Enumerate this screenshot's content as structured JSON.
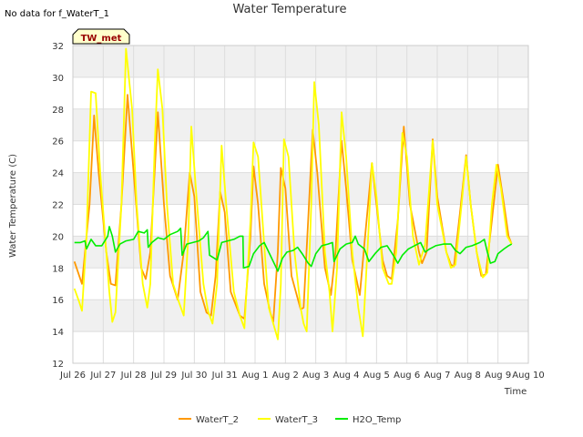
{
  "no_data_text": "No data for f_WaterT_1",
  "station_tag": "TW_met",
  "colors": {
    "WaterT_2": "#ff9900",
    "WaterT_3": "#ffff00",
    "H2O_Temp": "#00ee00",
    "band": "#f0f0f0",
    "tag_bg": "#ffffcc",
    "tag_text": "#990000"
  },
  "chart_data": {
    "type": "line",
    "title": "Water Temperature",
    "xlabel": "Time",
    "ylabel": "Water Temperature (C)",
    "ylim": [
      12,
      32
    ],
    "xlim": [
      0,
      15
    ],
    "x_unit": "days from Jul 26",
    "yticks": [
      12,
      14,
      16,
      18,
      20,
      22,
      24,
      26,
      28,
      30,
      32
    ],
    "xticks": [
      {
        "v": 0,
        "label": "Jul 26"
      },
      {
        "v": 1,
        "label": "Jul 27"
      },
      {
        "v": 2,
        "label": "Jul 28"
      },
      {
        "v": 3,
        "label": "Jul 29"
      },
      {
        "v": 4,
        "label": "Jul 30"
      },
      {
        "v": 5,
        "label": "Jul 31"
      },
      {
        "v": 6,
        "label": "Aug 1"
      },
      {
        "v": 7,
        "label": "Aug 2"
      },
      {
        "v": 8,
        "label": "Aug 3"
      },
      {
        "v": 9,
        "label": "Aug 4"
      },
      {
        "v": 10,
        "label": "Aug 5"
      },
      {
        "v": 11,
        "label": "Aug 6"
      },
      {
        "v": 12,
        "label": "Aug 7"
      },
      {
        "v": 13,
        "label": "Aug 8"
      },
      {
        "v": 14,
        "label": "Aug 9"
      },
      {
        "v": 15,
        "label": "Aug 10"
      }
    ],
    "grid": true,
    "legend_position": "bottom",
    "series": [
      {
        "name": "WaterT_2",
        "points": [
          [
            0.05,
            18.4
          ],
          [
            0.3,
            17.0
          ],
          [
            0.55,
            22.0
          ],
          [
            0.7,
            27.6
          ],
          [
            0.85,
            24.0
          ],
          [
            1.1,
            19.0
          ],
          [
            1.25,
            17.0
          ],
          [
            1.4,
            16.9
          ],
          [
            1.6,
            22.0
          ],
          [
            1.8,
            28.9
          ],
          [
            2.0,
            24.0
          ],
          [
            2.25,
            18.0
          ],
          [
            2.4,
            17.3
          ],
          [
            2.55,
            19.0
          ],
          [
            2.8,
            27.8
          ],
          [
            3.0,
            22.0
          ],
          [
            3.2,
            17.5
          ],
          [
            3.45,
            16.0
          ],
          [
            3.65,
            19.0
          ],
          [
            3.85,
            24.0
          ],
          [
            4.0,
            22.5
          ],
          [
            4.2,
            16.5
          ],
          [
            4.4,
            15.2
          ],
          [
            4.55,
            15.0
          ],
          [
            4.7,
            17.5
          ],
          [
            4.85,
            22.8
          ],
          [
            5.0,
            21.5
          ],
          [
            5.2,
            16.5
          ],
          [
            5.5,
            15.0
          ],
          [
            5.65,
            14.8
          ],
          [
            5.85,
            20.0
          ],
          [
            5.95,
            24.4
          ],
          [
            6.1,
            22.0
          ],
          [
            6.3,
            17.0
          ],
          [
            6.5,
            15.2
          ],
          [
            6.6,
            14.6
          ],
          [
            6.75,
            19.0
          ],
          [
            6.85,
            24.3
          ],
          [
            7.0,
            23.0
          ],
          [
            7.2,
            17.5
          ],
          [
            7.5,
            15.4
          ],
          [
            7.6,
            15.5
          ],
          [
            7.75,
            21.0
          ],
          [
            7.9,
            26.7
          ],
          [
            8.05,
            24.0
          ],
          [
            8.3,
            18.0
          ],
          [
            8.5,
            16.3
          ],
          [
            8.65,
            19.0
          ],
          [
            8.85,
            26.0
          ],
          [
            9.0,
            23.0
          ],
          [
            9.2,
            18.5
          ],
          [
            9.45,
            16.3
          ],
          [
            9.6,
            19.5
          ],
          [
            9.85,
            24.6
          ],
          [
            10.0,
            22.0
          ],
          [
            10.2,
            18.5
          ],
          [
            10.35,
            17.5
          ],
          [
            10.5,
            17.3
          ],
          [
            10.7,
            21.0
          ],
          [
            10.9,
            26.9
          ],
          [
            11.1,
            22.0
          ],
          [
            11.4,
            19.0
          ],
          [
            11.5,
            18.3
          ],
          [
            11.65,
            19.0
          ],
          [
            11.85,
            26.1
          ],
          [
            12.0,
            22.5
          ],
          [
            12.3,
            19.0
          ],
          [
            12.45,
            18.2
          ],
          [
            12.55,
            18.1
          ],
          [
            12.75,
            21.5
          ],
          [
            12.95,
            25.1
          ],
          [
            13.1,
            22.0
          ],
          [
            13.3,
            19.0
          ],
          [
            13.45,
            17.5
          ],
          [
            13.6,
            17.6
          ],
          [
            13.8,
            21.0
          ],
          [
            14.0,
            24.5
          ],
          [
            14.2,
            22.0
          ],
          [
            14.35,
            20.0
          ],
          [
            14.45,
            19.5
          ]
        ]
      },
      {
        "name": "WaterT_3",
        "points": [
          [
            0.05,
            16.7
          ],
          [
            0.2,
            15.9
          ],
          [
            0.3,
            15.3
          ],
          [
            0.45,
            20.0
          ],
          [
            0.6,
            29.1
          ],
          [
            0.75,
            29.0
          ],
          [
            0.9,
            24.0
          ],
          [
            1.1,
            19.0
          ],
          [
            1.2,
            16.5
          ],
          [
            1.3,
            14.6
          ],
          [
            1.4,
            15.2
          ],
          [
            1.6,
            22.0
          ],
          [
            1.75,
            31.8
          ],
          [
            1.95,
            28.0
          ],
          [
            2.1,
            22.0
          ],
          [
            2.3,
            17.0
          ],
          [
            2.45,
            15.5
          ],
          [
            2.55,
            17.0
          ],
          [
            2.7,
            26.0
          ],
          [
            2.8,
            30.5
          ],
          [
            2.95,
            28.0
          ],
          [
            3.1,
            22.0
          ],
          [
            3.3,
            17.0
          ],
          [
            3.5,
            15.8
          ],
          [
            3.65,
            15.0
          ],
          [
            3.8,
            20.0
          ],
          [
            3.9,
            26.9
          ],
          [
            4.05,
            23.0
          ],
          [
            4.3,
            17.0
          ],
          [
            4.45,
            15.3
          ],
          [
            4.6,
            14.5
          ],
          [
            4.75,
            17.0
          ],
          [
            4.9,
            25.7
          ],
          [
            5.05,
            22.0
          ],
          [
            5.3,
            16.5
          ],
          [
            5.5,
            15.0
          ],
          [
            5.65,
            14.2
          ],
          [
            5.85,
            21.0
          ],
          [
            5.95,
            25.9
          ],
          [
            6.1,
            25.0
          ],
          [
            6.3,
            19.5
          ],
          [
            6.45,
            15.5
          ],
          [
            6.6,
            14.5
          ],
          [
            6.75,
            13.5
          ],
          [
            6.85,
            17.0
          ],
          [
            6.95,
            26.1
          ],
          [
            7.1,
            25.0
          ],
          [
            7.3,
            19.0
          ],
          [
            7.5,
            15.5
          ],
          [
            7.6,
            14.5
          ],
          [
            7.7,
            14.0
          ],
          [
            7.85,
            22.0
          ],
          [
            7.95,
            29.7
          ],
          [
            8.1,
            27.0
          ],
          [
            8.3,
            19.0
          ],
          [
            8.45,
            16.5
          ],
          [
            8.55,
            14.0
          ],
          [
            8.7,
            18.0
          ],
          [
            8.85,
            27.8
          ],
          [
            9.0,
            25.0
          ],
          [
            9.2,
            19.0
          ],
          [
            9.4,
            15.5
          ],
          [
            9.55,
            13.7
          ],
          [
            9.7,
            19.0
          ],
          [
            9.85,
            24.6
          ],
          [
            10.0,
            22.5
          ],
          [
            10.2,
            18.0
          ],
          [
            10.4,
            17.0
          ],
          [
            10.5,
            17.0
          ],
          [
            10.65,
            19.0
          ],
          [
            10.85,
            26.5
          ],
          [
            11.0,
            25.0
          ],
          [
            11.2,
            20.0
          ],
          [
            11.4,
            18.2
          ],
          [
            11.6,
            19.5
          ],
          [
            11.85,
            26.0
          ],
          [
            12.0,
            22.0
          ],
          [
            12.3,
            19.0
          ],
          [
            12.45,
            18.0
          ],
          [
            12.6,
            18.2
          ],
          [
            12.8,
            22.0
          ],
          [
            12.95,
            25.0
          ],
          [
            13.1,
            22.0
          ],
          [
            13.3,
            19.0
          ],
          [
            13.5,
            17.4
          ],
          [
            13.65,
            17.7
          ],
          [
            13.8,
            22.0
          ],
          [
            13.95,
            24.5
          ],
          [
            14.1,
            23.0
          ],
          [
            14.3,
            20.0
          ],
          [
            14.45,
            19.5
          ]
        ]
      },
      {
        "name": "H2O_Temp",
        "points": [
          [
            0.05,
            19.6
          ],
          [
            0.25,
            19.6
          ],
          [
            0.4,
            19.7
          ],
          [
            0.45,
            19.2
          ],
          [
            0.6,
            19.8
          ],
          [
            0.75,
            19.4
          ],
          [
            0.95,
            19.4
          ],
          [
            1.15,
            20.0
          ],
          [
            1.2,
            20.6
          ],
          [
            1.3,
            20.0
          ],
          [
            1.4,
            19.0
          ],
          [
            1.55,
            19.5
          ],
          [
            1.75,
            19.7
          ],
          [
            2.0,
            19.8
          ],
          [
            2.15,
            20.3
          ],
          [
            2.35,
            20.2
          ],
          [
            2.45,
            20.4
          ],
          [
            2.48,
            19.3
          ],
          [
            2.6,
            19.6
          ],
          [
            2.8,
            19.9
          ],
          [
            3.0,
            19.8
          ],
          [
            3.2,
            20.1
          ],
          [
            3.45,
            20.3
          ],
          [
            3.55,
            20.5
          ],
          [
            3.6,
            18.8
          ],
          [
            3.75,
            19.5
          ],
          [
            3.95,
            19.6
          ],
          [
            4.15,
            19.7
          ],
          [
            4.3,
            19.9
          ],
          [
            4.45,
            20.3
          ],
          [
            4.5,
            18.8
          ],
          [
            4.75,
            18.5
          ],
          [
            4.9,
            19.6
          ],
          [
            5.1,
            19.7
          ],
          [
            5.3,
            19.8
          ],
          [
            5.5,
            20.0
          ],
          [
            5.6,
            20.0
          ],
          [
            5.62,
            18.0
          ],
          [
            5.8,
            18.1
          ],
          [
            5.95,
            18.9
          ],
          [
            6.15,
            19.4
          ],
          [
            6.3,
            19.6
          ],
          [
            6.45,
            19.0
          ],
          [
            6.65,
            18.2
          ],
          [
            6.75,
            17.8
          ],
          [
            6.9,
            18.6
          ],
          [
            7.05,
            19.0
          ],
          [
            7.25,
            19.1
          ],
          [
            7.4,
            19.3
          ],
          [
            7.55,
            18.9
          ],
          [
            7.75,
            18.3
          ],
          [
            7.85,
            18.1
          ],
          [
            8.0,
            18.9
          ],
          [
            8.2,
            19.4
          ],
          [
            8.4,
            19.5
          ],
          [
            8.55,
            19.6
          ],
          [
            8.6,
            18.4
          ],
          [
            8.8,
            19.2
          ],
          [
            9.0,
            19.5
          ],
          [
            9.2,
            19.6
          ],
          [
            9.3,
            20.0
          ],
          [
            9.4,
            19.5
          ],
          [
            9.6,
            19.2
          ],
          [
            9.75,
            18.4
          ],
          [
            9.95,
            18.9
          ],
          [
            10.15,
            19.3
          ],
          [
            10.35,
            19.4
          ],
          [
            10.55,
            18.8
          ],
          [
            10.7,
            18.3
          ],
          [
            10.85,
            18.8
          ],
          [
            11.05,
            19.2
          ],
          [
            11.25,
            19.4
          ],
          [
            11.45,
            19.6
          ],
          [
            11.6,
            19.0
          ],
          [
            11.75,
            19.2
          ],
          [
            11.95,
            19.4
          ],
          [
            12.2,
            19.5
          ],
          [
            12.45,
            19.5
          ],
          [
            12.6,
            19.1
          ],
          [
            12.75,
            18.9
          ],
          [
            12.95,
            19.3
          ],
          [
            13.15,
            19.4
          ],
          [
            13.4,
            19.6
          ],
          [
            13.55,
            19.8
          ],
          [
            13.65,
            19.0
          ],
          [
            13.75,
            18.3
          ],
          [
            13.9,
            18.4
          ],
          [
            14.0,
            18.9
          ],
          [
            14.2,
            19.2
          ],
          [
            14.35,
            19.4
          ],
          [
            14.45,
            19.5
          ]
        ]
      }
    ]
  }
}
